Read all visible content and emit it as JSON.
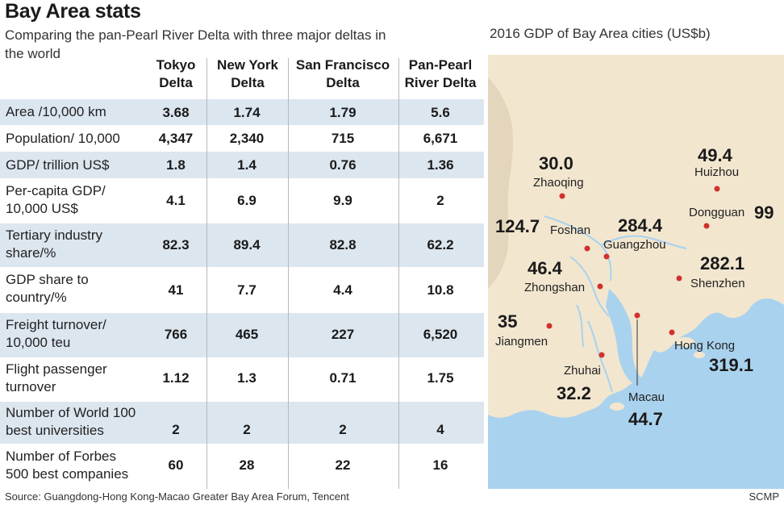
{
  "title": "Bay Area stats",
  "subtitle": "Comparing the pan-Pearl River Delta with three major deltas in the world",
  "columns": [
    {
      "line1": "Tokyo",
      "line2": "Delta"
    },
    {
      "line1": "New York",
      "line2": "Delta"
    },
    {
      "line1": "San Francisco",
      "line2": "Delta"
    },
    {
      "line1": "Pan-Pearl",
      "line2": "River Delta"
    }
  ],
  "rows": [
    {
      "label1": "Area /10,000 km",
      "label2": "",
      "values": [
        "3.68",
        "1.74",
        "1.79",
        "5.6"
      ]
    },
    {
      "label1": "Population/ 10,000",
      "label2": "",
      "values": [
        "4,347",
        "2,340",
        "715",
        "6,671"
      ]
    },
    {
      "label1": "GDP/ trillion US$",
      "label2": "",
      "values": [
        "1.8",
        "1.4",
        "0.76",
        "1.36"
      ]
    },
    {
      "label1": "Per-capita GDP/",
      "label2": "10,000 US$",
      "values": [
        "4.1",
        "6.9",
        "9.9",
        "2"
      ]
    },
    {
      "label1": "Tertiary industry",
      "label2": "share/%",
      "values": [
        "82.3",
        "89.4",
        "82.8",
        "62.2"
      ]
    },
    {
      "label1": "GDP share to",
      "label2": "country/%",
      "values": [
        "41",
        "7.7",
        "4.4",
        "10.8"
      ]
    },
    {
      "label1": "Freight turnover/",
      "label2": "10,000 teu",
      "values": [
        "766",
        "465",
        "227",
        "6,520"
      ]
    },
    {
      "label1": "Flight passenger",
      "label2": "turnover",
      "values": [
        "1.12",
        "1.3",
        "0.71",
        "1.75"
      ]
    },
    {
      "label1": "Number of World 100",
      "label2": "best universities",
      "values": [
        "2",
        "2",
        "2",
        "4"
      ]
    },
    {
      "label1": "Number of Forbes",
      "label2": "500 best companies",
      "values": [
        "60",
        "28",
        "22",
        "16"
      ]
    }
  ],
  "map": {
    "title": "2016 GDP of Bay Area cities (US$b)",
    "cities": [
      {
        "name": "Zhaoqing",
        "value": "30.0"
      },
      {
        "name": "Huizhou",
        "value": "49.4"
      },
      {
        "name": "Dongguan",
        "value": "99"
      },
      {
        "name": "Foshan",
        "value": "124.7"
      },
      {
        "name": "Guangzhou",
        "value": "284.4"
      },
      {
        "name": "Zhongshan",
        "value": "46.4"
      },
      {
        "name": "Shenzhen",
        "value": "282.1"
      },
      {
        "name": "Jiangmen",
        "value": "35"
      },
      {
        "name": "Hong Kong",
        "value": "319.1"
      },
      {
        "name": "Zhuhai",
        "value": "32.2"
      },
      {
        "name": "Macau",
        "value": "44.7"
      }
    ]
  },
  "source": "Source: Guangdong-Hong Kong-Macao Greater Bay Area Forum, Tencent",
  "brand": "SCMP",
  "colors": {
    "row_shade": "#dce6ef",
    "sea": "#a9d2ee",
    "land": "#f2e6cf",
    "dot": "#d0312d"
  }
}
